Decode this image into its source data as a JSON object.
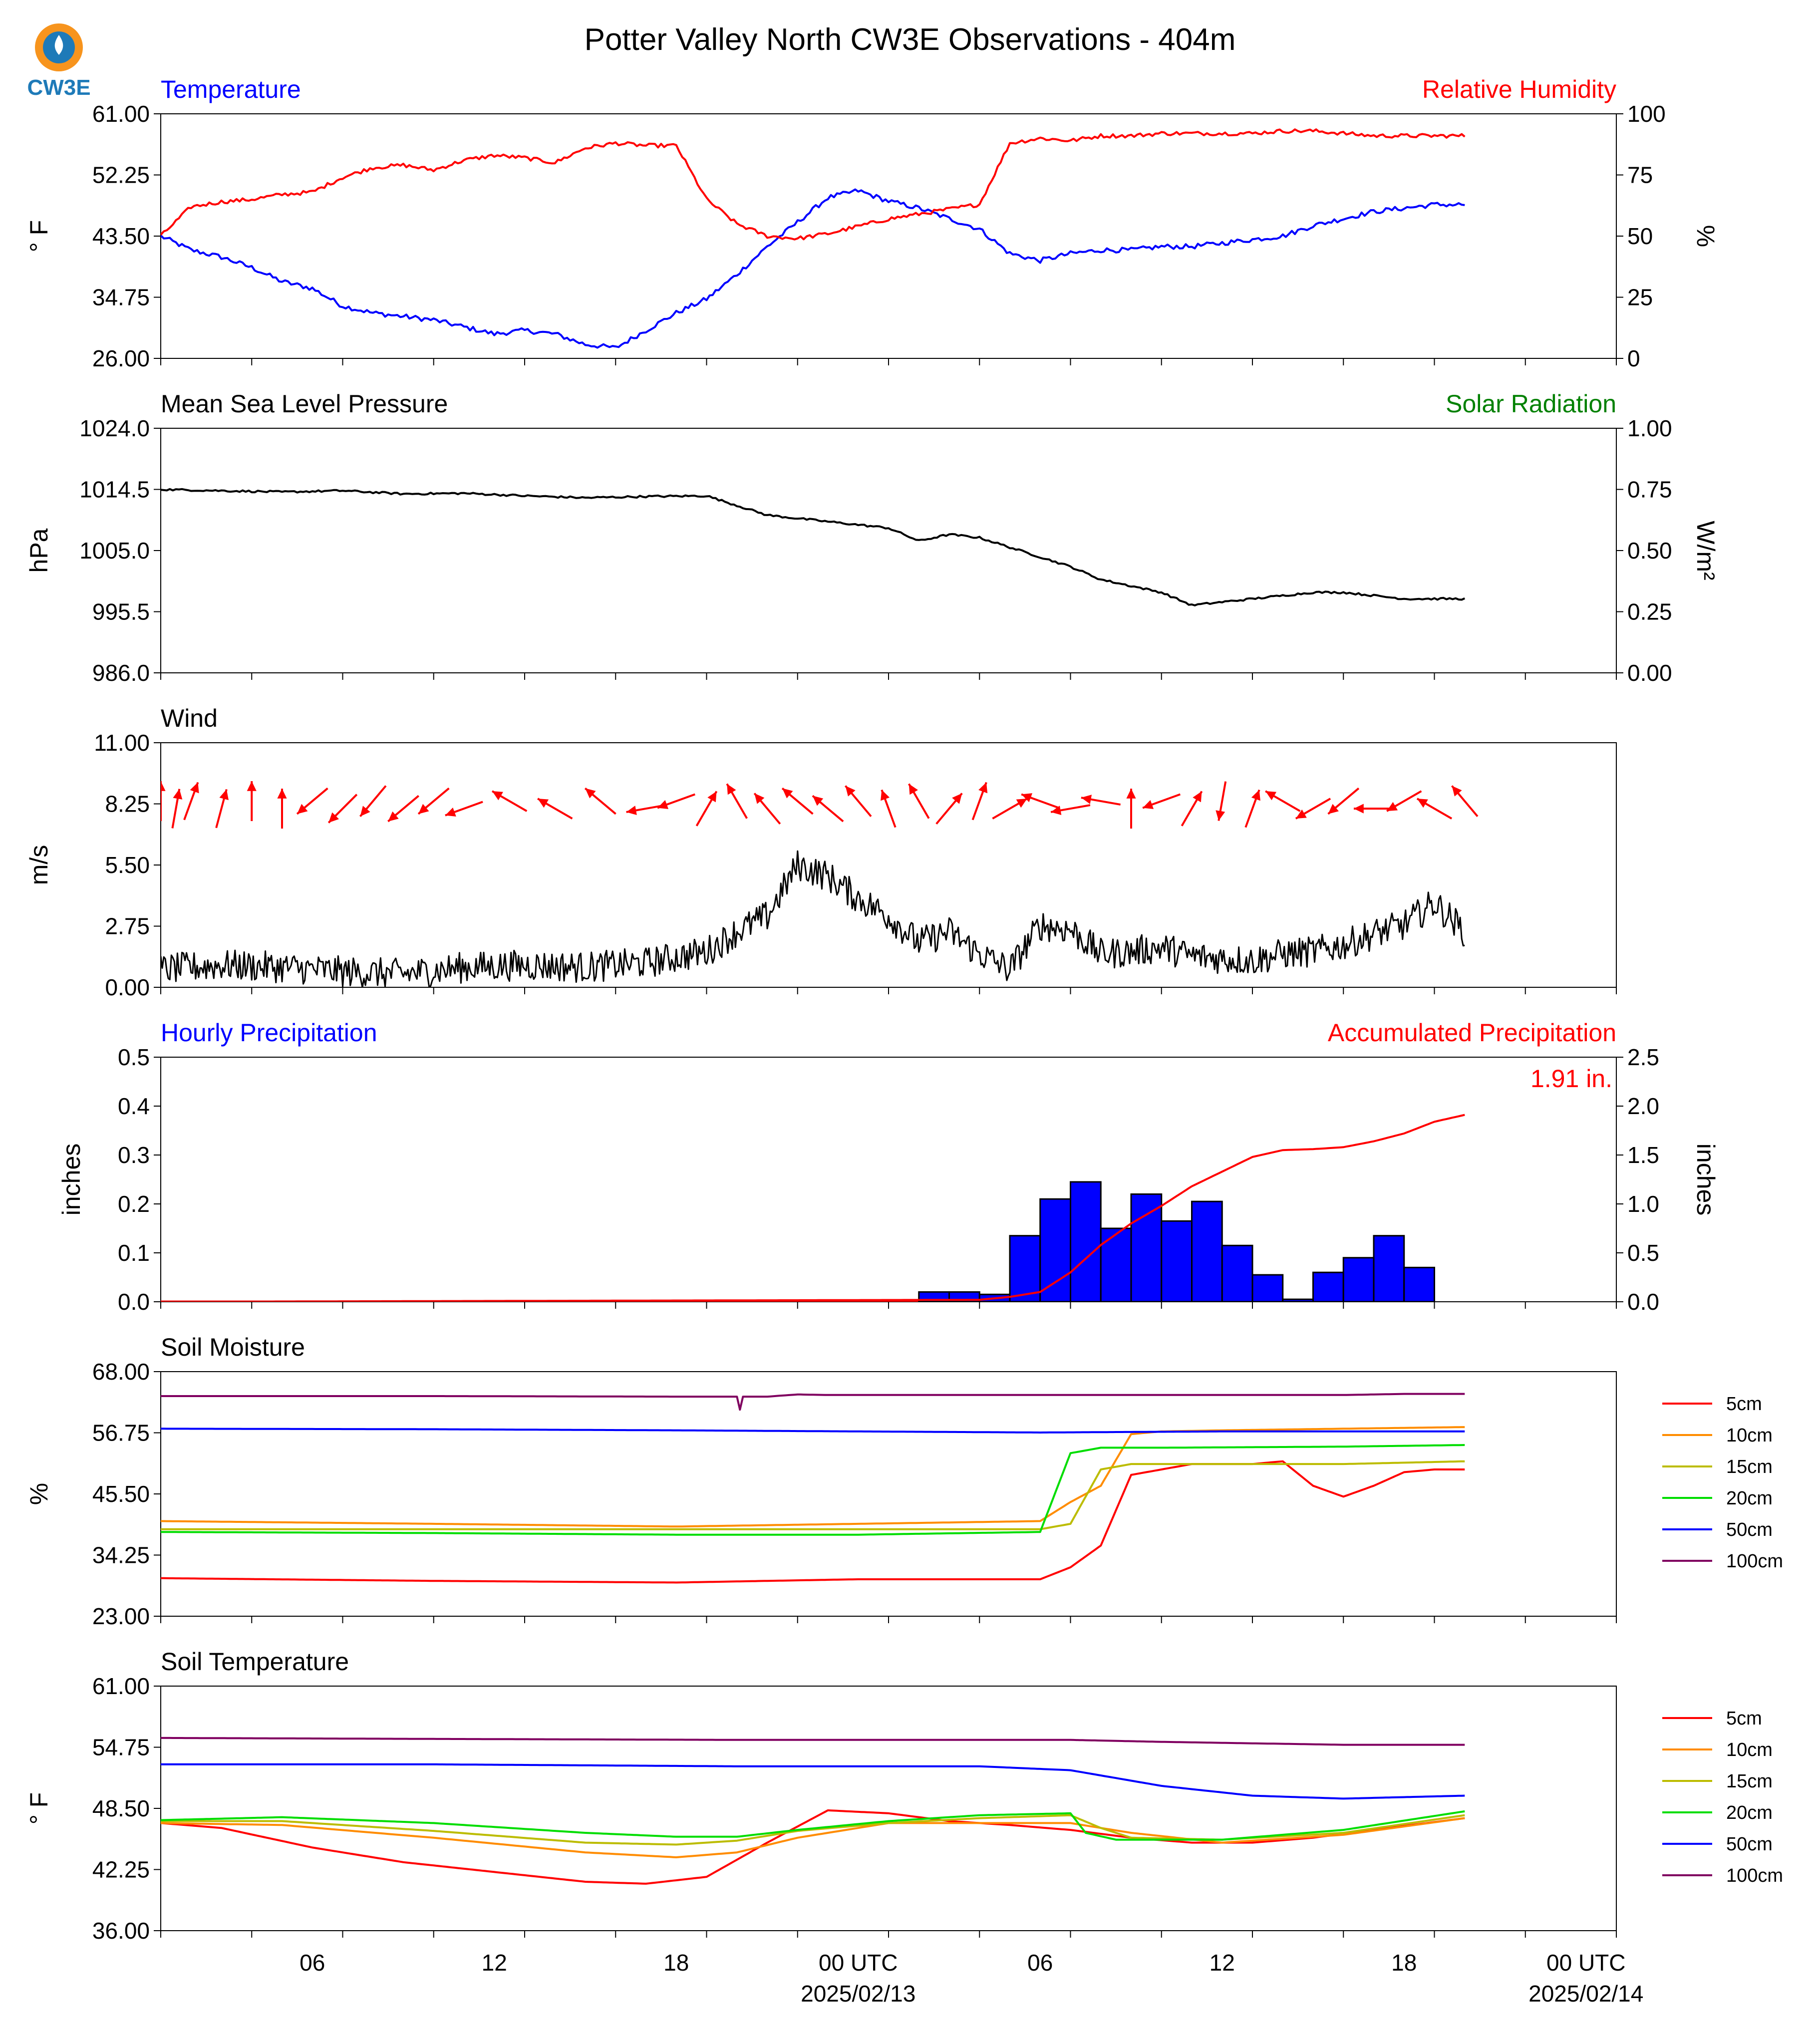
{
  "title": "Potter Valley North CW3E Observations - 404m",
  "logo_text": "CW3E",
  "colors": {
    "temp": "#0000ff",
    "rh": "#ff0000",
    "pres": "#000000",
    "solar": "#008000",
    "precip_bar": "#0000ff",
    "precip_acc": "#ff0000"
  },
  "time_axis": {
    "start": "2025-02-12 01 UTC",
    "end": "2025-02-14 01 UTC",
    "data_end": "2025-02-13 20 UTC",
    "tick_labels": [
      {
        "hour": 6,
        "label": "06"
      },
      {
        "hour": 12,
        "label": "12"
      },
      {
        "hour": 18,
        "label": "18"
      },
      {
        "hour": 24,
        "label": "00 UTC",
        "date": "2025/02/13"
      },
      {
        "hour": 30,
        "label": "06"
      },
      {
        "hour": 36,
        "label": "12"
      },
      {
        "hour": 42,
        "label": "18"
      },
      {
        "hour": 48,
        "label": "00 UTC",
        "date": "2025/02/14"
      }
    ]
  },
  "chart_data": [
    {
      "id": "temp_rh",
      "type": "line",
      "left_title": "Temperature",
      "right_title": "Relative Humidity",
      "ylabel": "° F",
      "y2label": "%",
      "ylim": [
        26,
        61
      ],
      "yticks": [
        "26.00",
        "34.75",
        "43.50",
        "52.25",
        "61.00"
      ],
      "y2lim": [
        0,
        100
      ],
      "y2ticks": [
        "0",
        "25",
        "50",
        "75",
        "100"
      ],
      "series": [
        {
          "name": "Temperature",
          "axis": "left",
          "color": "#0000ff",
          "x": [
            1,
            2,
            3,
            4,
            5,
            6,
            7,
            8,
            9,
            10,
            11,
            12,
            13,
            14,
            15,
            16,
            17,
            18,
            19,
            20,
            21,
            22,
            23,
            24,
            25,
            26,
            27,
            28,
            29,
            30,
            31,
            32,
            33,
            34,
            35,
            36,
            37,
            38,
            39,
            40,
            41,
            42,
            43,
            44
          ],
          "values": [
            43.5,
            41.5,
            40.5,
            39,
            37,
            36,
            33.5,
            32.5,
            32,
            31.5,
            30.5,
            29.5,
            30,
            29.5,
            28,
            27.5,
            30,
            32.5,
            34.5,
            38,
            42,
            45.5,
            49,
            50,
            48.5,
            47.5,
            46,
            44.5,
            41,
            40,
            41,
            41.5,
            41.5,
            42,
            42,
            42.5,
            43,
            43.5,
            45,
            46,
            47,
            47.5,
            48,
            48
          ]
        },
        {
          "name": "Relative Humidity",
          "axis": "right",
          "color": "#ff0000",
          "x": [
            1,
            2,
            3,
            4,
            5,
            6,
            7,
            8,
            9,
            10,
            11,
            12,
            13,
            14,
            15,
            16,
            17,
            18,
            19,
            20,
            21,
            22,
            23,
            24,
            25,
            26,
            27,
            28,
            29,
            30,
            31,
            32,
            33,
            34,
            35,
            36,
            37,
            38,
            39,
            40,
            41,
            42,
            43,
            44
          ],
          "values": [
            50,
            62,
            64,
            65,
            67,
            68,
            74,
            78,
            79,
            77,
            81,
            83,
            82,
            80,
            86,
            88,
            87,
            87,
            65,
            55,
            50,
            49,
            51,
            54,
            57,
            59,
            61,
            63,
            88,
            90,
            89,
            91,
            91,
            92,
            92,
            92,
            92,
            93,
            93,
            92,
            91,
            91,
            91,
            91
          ]
        }
      ]
    },
    {
      "id": "pressure",
      "type": "line",
      "left_title": "Mean Sea Level Pressure",
      "right_title": "Solar Radiation",
      "ylabel": "hPa",
      "y2label": "W/m²",
      "ylim": [
        986,
        1024
      ],
      "yticks": [
        "986.0",
        "995.5",
        "1005.0",
        "1014.5",
        "1024.0"
      ],
      "y2lim": [
        0,
        1
      ],
      "y2ticks": [
        "0.00",
        "0.25",
        "0.50",
        "0.75",
        "1.00"
      ],
      "series": [
        {
          "name": "Mean Sea Level Pressure",
          "axis": "left",
          "color": "#000000",
          "x": [
            1,
            3,
            5,
            7,
            9,
            11,
            13,
            15,
            17,
            19,
            20,
            21,
            22,
            23,
            24,
            25,
            26,
            27,
            28,
            29,
            30,
            31,
            32,
            33,
            34,
            35,
            36,
            37,
            38,
            39,
            40,
            41,
            42,
            43,
            44
          ],
          "values": [
            1014.5,
            1014.3,
            1014.1,
            1014.3,
            1013.8,
            1013.9,
            1013.5,
            1013.2,
            1013.4,
            1013.5,
            1012,
            1010.5,
            1010,
            1009.5,
            1009,
            1008.5,
            1006.5,
            1007.5,
            1007,
            1005.5,
            1004,
            1002.5,
            1000.5,
            999.5,
            998.5,
            996.5,
            997,
            997.5,
            998,
            998.5,
            998.5,
            998,
            997.5,
            997.5,
            997.5
          ]
        }
      ]
    },
    {
      "id": "wind",
      "type": "line",
      "left_title": "Wind",
      "ylabel": "m/s",
      "ylim": [
        0,
        11
      ],
      "yticks": [
        "0.00",
        "2.75",
        "5.50",
        "8.25",
        "11.00"
      ],
      "series": [
        {
          "name": "Wind Speed",
          "axis": "left",
          "color": "#000000",
          "x": [
            1,
            3,
            5,
            7,
            9,
            11,
            13,
            15,
            17,
            19,
            20,
            21,
            22,
            23,
            24,
            25,
            26,
            27,
            28,
            29,
            30,
            31,
            32,
            33,
            34,
            35,
            36,
            37,
            38,
            39,
            40,
            41,
            42,
            43,
            44
          ],
          "values": [
            0.8,
            1,
            0.9,
            0.7,
            0.6,
            0.9,
            1,
            0.9,
            1.1,
            1.6,
            2.5,
            3.2,
            5.5,
            5,
            4,
            3.2,
            2,
            2.5,
            1.5,
            0.8,
            2.8,
            2.6,
            1.5,
            1.6,
            1.8,
            1.4,
            1.3,
            1.2,
            1.5,
            1.6,
            1.9,
            2.4,
            2.8,
            3.8,
            2.5
          ]
        }
      ],
      "wind_arrows": {
        "color": "#ff0000",
        "x": [
          1,
          1.5,
          2,
          3,
          4,
          5,
          6,
          7,
          8,
          9,
          10,
          11,
          12.5,
          14,
          15.5,
          17,
          18,
          19,
          20,
          21,
          22,
          23,
          24,
          25,
          26,
          27,
          28,
          29,
          30,
          31,
          32,
          33,
          34,
          35,
          36,
          37,
          38,
          39,
          40,
          41,
          42,
          43,
          44
        ],
        "direction_deg": [
          0,
          10,
          20,
          15,
          0,
          0,
          230,
          225,
          220,
          230,
          230,
          250,
          300,
          300,
          310,
          260,
          250,
          30,
          330,
          320,
          310,
          310,
          320,
          340,
          330,
          40,
          20,
          60,
          290,
          260,
          280,
          0,
          250,
          30,
          190,
          20,
          300,
          240,
          230,
          270,
          240,
          300,
          320
        ]
      }
    },
    {
      "id": "precip",
      "type": "bar",
      "left_title": "Hourly Precipitation",
      "right_title": "Accumulated Precipitation",
      "annotation": "1.91 in.",
      "ylabel": "inches",
      "y2label": "inches",
      "ylim": [
        0,
        0.5
      ],
      "yticks": [
        "0.0",
        "0.1",
        "0.2",
        "0.3",
        "0.4",
        "0.5"
      ],
      "y2lim": [
        0,
        2.5
      ],
      "y2ticks": [
        "0.0",
        "0.5",
        "1.0",
        "1.5",
        "2.0",
        "2.5"
      ],
      "bars": {
        "name": "Hourly Precipitation",
        "color": "#0000ff",
        "x": [
          27,
          28,
          29,
          30,
          31,
          32,
          33,
          34,
          35,
          36,
          37,
          38,
          39,
          40,
          41,
          42,
          43,
          44
        ],
        "values": [
          0.02,
          0.02,
          0.015,
          0.135,
          0.21,
          0.245,
          0.15,
          0.22,
          0.165,
          0.205,
          0.115,
          0.055,
          0.005,
          0.06,
          0.09,
          0.135,
          0.07,
          0
        ]
      },
      "accumulated": {
        "name": "Accumulated Precipitation",
        "color": "#ff0000",
        "x": [
          1,
          28,
          29,
          30,
          31,
          32,
          33,
          34,
          35,
          36,
          37,
          38,
          39,
          40,
          41,
          42,
          43,
          44
        ],
        "values": [
          0,
          0.02,
          0.05,
          0.1,
          0.3,
          0.58,
          0.8,
          0.98,
          1.18,
          1.33,
          1.48,
          1.55,
          1.56,
          1.58,
          1.64,
          1.72,
          1.84,
          1.91
        ]
      }
    },
    {
      "id": "soil_moisture",
      "type": "line",
      "left_title": "Soil Moisture",
      "ylabel": "%",
      "ylim": [
        23,
        68
      ],
      "yticks": [
        "23.00",
        "34.25",
        "45.50",
        "56.75",
        "68.00"
      ],
      "legend": [
        "5cm",
        "10cm",
        "15cm",
        "20cm",
        "50cm",
        "100cm"
      ],
      "series": [
        {
          "name": "5cm",
          "color": "#ff0000",
          "x": [
            1,
            10,
            18,
            24,
            30,
            31,
            32,
            33,
            34,
            35,
            36,
            37,
            38,
            39,
            40,
            41,
            42,
            43,
            44
          ],
          "values": [
            30,
            29.5,
            29.2,
            29.8,
            29.8,
            32,
            36,
            49,
            50,
            51,
            51,
            51,
            51.5,
            47,
            45,
            47,
            49.5,
            50,
            50
          ]
        },
        {
          "name": "10cm",
          "color": "#ff8c00",
          "x": [
            1,
            10,
            18,
            24,
            30,
            31,
            32,
            33,
            34,
            36,
            40,
            44
          ],
          "values": [
            40.5,
            40,
            39.5,
            40,
            40.5,
            44,
            47,
            56.5,
            57,
            57.2,
            57.5,
            57.8
          ]
        },
        {
          "name": "15cm",
          "color": "#bcbc00",
          "x": [
            1,
            30,
            31,
            32,
            33,
            34,
            40,
            44
          ],
          "values": [
            39,
            39,
            40,
            50,
            51,
            51,
            51,
            51.5
          ]
        },
        {
          "name": "20cm",
          "color": "#00dd00",
          "x": [
            1,
            10,
            18,
            24,
            30,
            31,
            32,
            33,
            34,
            40,
            44
          ],
          "values": [
            38.5,
            38.3,
            38,
            38,
            38.5,
            53,
            54,
            54,
            54,
            54.2,
            54.5
          ]
        },
        {
          "name": "50cm",
          "color": "#0000ff",
          "x": [
            1,
            10,
            18,
            24,
            30,
            36,
            44
          ],
          "values": [
            57.5,
            57.4,
            57.2,
            57,
            56.8,
            57,
            57
          ]
        },
        {
          "name": "100cm",
          "color": "#800060",
          "x": [
            1,
            10,
            18,
            20,
            20.1,
            20.2,
            21,
            22,
            23,
            30,
            40,
            42,
            44
          ],
          "values": [
            63.5,
            63.5,
            63.4,
            63.4,
            61,
            63.4,
            63.4,
            63.8,
            63.7,
            63.7,
            63.7,
            63.9,
            63.9
          ]
        }
      ]
    },
    {
      "id": "soil_temperature",
      "type": "line",
      "left_title": "Soil Temperature",
      "ylabel": "° F",
      "ylim": [
        36,
        61
      ],
      "yticks": [
        "36.00",
        "42.25",
        "48.50",
        "54.75",
        "61.00"
      ],
      "legend": [
        "5cm",
        "10cm",
        "15cm",
        "20cm",
        "50cm",
        "100cm"
      ],
      "series": [
        {
          "name": "5cm",
          "color": "#ff0000",
          "x": [
            1,
            3,
            6,
            9,
            12,
            15,
            17,
            19,
            21,
            23,
            25,
            27,
            29,
            31,
            33,
            35,
            37,
            39,
            41,
            44
          ],
          "values": [
            47,
            46.5,
            44.5,
            43,
            42,
            41,
            40.8,
            41.5,
            45,
            48.3,
            48,
            47.2,
            46.8,
            46.3,
            45.5,
            45,
            45,
            45.5,
            46.3,
            47.5
          ]
        },
        {
          "name": "10cm",
          "color": "#ff8c00",
          "x": [
            1,
            5,
            10,
            15,
            18,
            20,
            22,
            25,
            28,
            31,
            33,
            36,
            40,
            44
          ],
          "values": [
            47,
            46.8,
            45.5,
            44,
            43.5,
            44,
            45.5,
            47,
            47,
            47,
            46,
            45,
            45.8,
            47.5
          ]
        },
        {
          "name": "15cm",
          "color": "#bcbc00",
          "x": [
            1,
            5,
            10,
            15,
            18,
            20,
            22,
            25,
            28,
            31,
            32,
            33,
            36,
            40,
            44
          ],
          "values": [
            47.2,
            47.2,
            46.2,
            45,
            44.8,
            45.2,
            46.2,
            47,
            47.5,
            47.8,
            46.5,
            45.5,
            45.3,
            46,
            47.8
          ]
        },
        {
          "name": "20cm",
          "color": "#00dd00",
          "x": [
            1,
            5,
            10,
            15,
            18,
            20,
            22,
            25,
            28,
            31,
            31.5,
            32.5,
            36,
            40,
            44
          ],
          "values": [
            47.3,
            47.6,
            47,
            46,
            45.6,
            45.6,
            46.3,
            47.2,
            47.8,
            48,
            46,
            45.3,
            45.3,
            46.3,
            48.2
          ]
        },
        {
          "name": "50cm",
          "color": "#0000ff",
          "x": [
            1,
            10,
            20,
            28,
            31,
            34,
            37,
            40,
            44
          ],
          "values": [
            53,
            53,
            52.8,
            52.8,
            52.4,
            50.8,
            49.8,
            49.5,
            49.8
          ]
        },
        {
          "name": "100cm",
          "color": "#800060",
          "x": [
            1,
            10,
            20,
            31,
            34,
            40,
            44
          ],
          "values": [
            55.7,
            55.6,
            55.5,
            55.5,
            55.3,
            55,
            55
          ]
        }
      ]
    }
  ]
}
